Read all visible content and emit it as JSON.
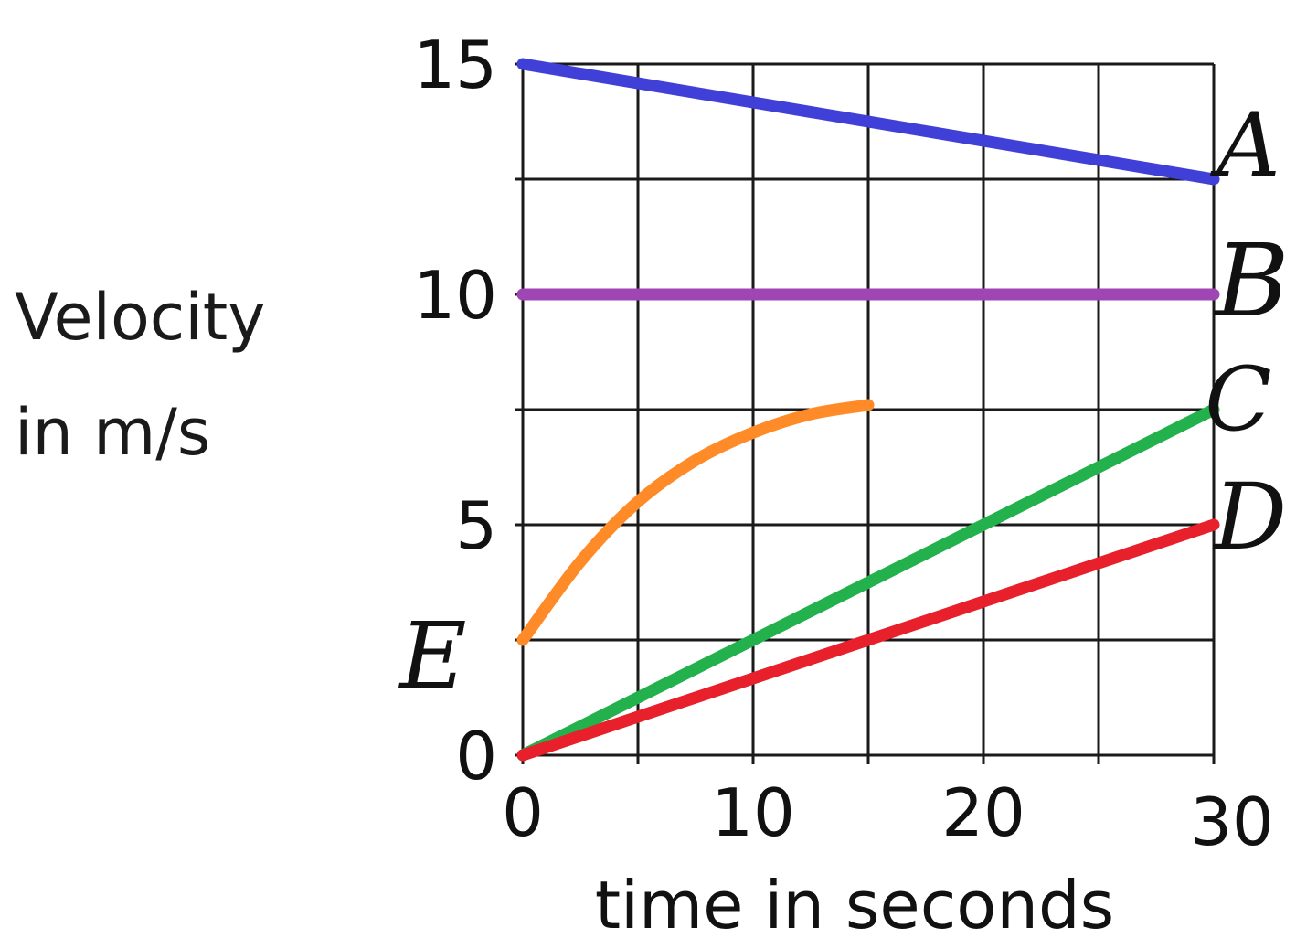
{
  "chart_data": {
    "type": "line",
    "xlabel": "time in seconds",
    "ylabel": [
      "Velocity",
      "in m/s"
    ],
    "xlim": [
      0,
      30
    ],
    "ylim": [
      0,
      15
    ],
    "x_ticks": [
      0,
      10,
      20,
      30
    ],
    "y_ticks": [
      0,
      5,
      10,
      15
    ],
    "x_grid_step": 5,
    "y_grid_step": 2.5,
    "grid": true,
    "series": [
      {
        "name": "A",
        "color": "#4040d8",
        "x": [
          0,
          30
        ],
        "y": [
          15,
          12.5
        ]
      },
      {
        "name": "B",
        "color": "#a046b4",
        "x": [
          0,
          30
        ],
        "y": [
          10,
          10
        ]
      },
      {
        "name": "C",
        "color": "#22b14c",
        "x": [
          0,
          30
        ],
        "y": [
          0,
          7.5
        ]
      },
      {
        "name": "D",
        "color": "#e8202c",
        "x": [
          0,
          30
        ],
        "y": [
          0,
          5
        ]
      },
      {
        "name": "E",
        "color": "#ff8a28",
        "x": [
          0,
          2.5,
          5,
          7.5,
          10,
          12.5,
          15
        ],
        "y": [
          2.5,
          4.2,
          5.5,
          6.4,
          7.0,
          7.4,
          7.6
        ]
      }
    ]
  }
}
